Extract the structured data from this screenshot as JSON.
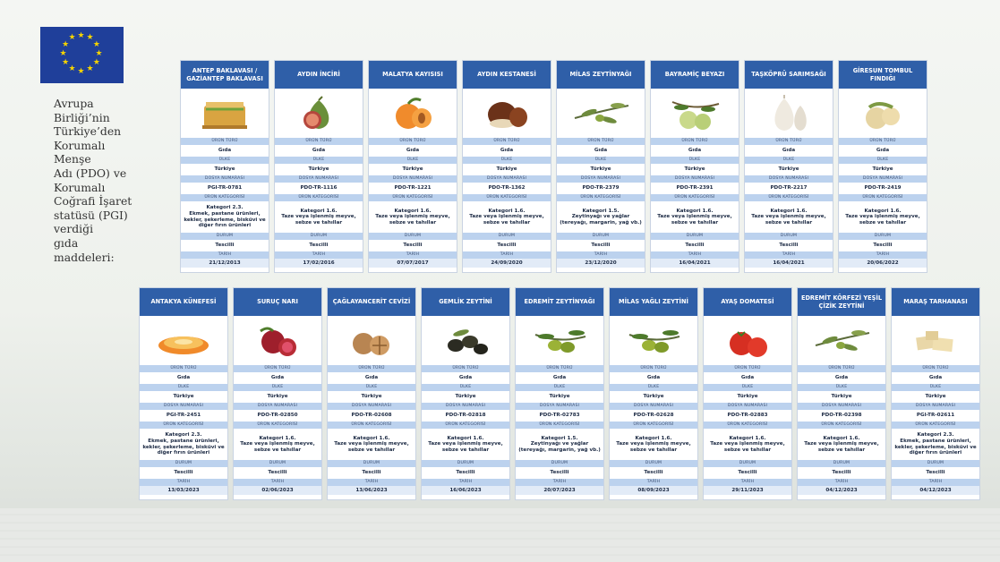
{
  "side_title": [
    "Avrupa",
    "Birliği’nin",
    "Türkiye’den",
    "Korumalı Menşe",
    "Adı (PDO) ve",
    "Korumalı",
    "Coğrafi İşaret",
    "statüsü (PGI)",
    "verdiği",
    "gıda maddeleri:"
  ],
  "labels": {
    "type": "ÜRÜN TÜRÜ",
    "country": "ÜLKE",
    "file": "DOSYA NUMARASI",
    "category": "ÜRÜN KATEGORİSİ",
    "status": "DURUM",
    "date": "TARİH"
  },
  "row1": [
    {
      "name": "ANTEP BAKLAVASI / GAZİANTEP BAKLAVASI",
      "type": "Gıda",
      "country": "Türkiye",
      "file": "PGI-TR-0781",
      "cat1": "Kategori 2.3.",
      "cat2": "Ekmek, pastane ürünleri, kekler, şekerleme, bisküvi ve diğer fırın ürünleri",
      "status": "Tescilli",
      "date": "21/12/2013",
      "icon": "baklava-icon"
    },
    {
      "name": "AYDIN İNCİRİ",
      "type": "Gıda",
      "country": "Türkiye",
      "file": "PDO-TR-1116",
      "cat1": "Kategori 1.6.",
      "cat2": "Taze veya işlenmiş meyve, sebze ve tahıllar",
      "status": "Tescilli",
      "date": "17/02/2016",
      "icon": "fig-icon"
    },
    {
      "name": "MALATYA KAYISISI",
      "type": "Gıda",
      "country": "Türkiye",
      "file": "PDO-TR-1221",
      "cat1": "Kategori 1.6.",
      "cat2": "Taze veya işlenmiş meyve, sebze ve tahıllar",
      "status": "Tescilli",
      "date": "07/07/2017",
      "icon": "apricot-icon"
    },
    {
      "name": "AYDIN KESTANESİ",
      "type": "Gıda",
      "country": "Türkiye",
      "file": "PDO-TR-1362",
      "cat1": "Kategori 1.6.",
      "cat2": "Taze veya işlenmiş meyve, sebze ve tahıllar",
      "status": "Tescilli",
      "date": "24/09/2020",
      "icon": "chestnut-icon"
    },
    {
      "name": "MİLAS ZEYTİNYAĞI",
      "type": "Gıda",
      "country": "Türkiye",
      "file": "PDO-TR-2379",
      "cat1": "Kategori 1.5.",
      "cat2": "Zeytinyağı ve yağlar (tereyağı, margarin, yağ vb.)",
      "status": "Tescilli",
      "date": "23/12/2020",
      "icon": "olive-branch-icon"
    },
    {
      "name": "BAYRAMİÇ BEYAZI",
      "type": "Gıda",
      "country": "Türkiye",
      "file": "PDO-TR-2391",
      "cat1": "Kategori 1.6.",
      "cat2": "Taze veya işlenmiş meyve, sebze ve tahıllar",
      "status": "Tescilli",
      "date": "16/04/2021",
      "icon": "nectarine-branch-icon"
    },
    {
      "name": "TAŞKÖPRÜ SARIMSAĞI",
      "type": "Gıda",
      "country": "Türkiye",
      "file": "PDO-TR-2217",
      "cat1": "Kategori 1.6.",
      "cat2": "Taze veya işlenmiş meyve, sebze ve tahıllar",
      "status": "Tescilli",
      "date": "16/04/2021",
      "icon": "garlic-icon"
    },
    {
      "name": "GİRESUN TOMBUL FINDIĞI",
      "type": "Gıda",
      "country": "Türkiye",
      "file": "PDO-TR-2419",
      "cat1": "Kategori 1.6.",
      "cat2": "Taze veya işlenmiş meyve, sebze ve tahıllar",
      "status": "Tescilli",
      "date": "20/06/2022",
      "icon": "hazelnut-icon"
    }
  ],
  "row2": [
    {
      "name": "ANTAKYA KÜNEFESİ",
      "type": "Gıda",
      "country": "Türkiye",
      "file": "PGI-TR-2451",
      "cat1": "Kategori 2.3.",
      "cat2": "Ekmek, pastane ürünleri, kekler, şekerleme, bisküvi ve diğer fırın ürünleri",
      "status": "Tescilli",
      "date": "13/03/2023",
      "icon": "kunefe-icon"
    },
    {
      "name": "SURUÇ NARI",
      "type": "Gıda",
      "country": "Türkiye",
      "file": "PDO-TR-02850",
      "cat1": "Kategori 1.6.",
      "cat2": "Taze veya işlenmiş meyve, sebze ve tahıllar",
      "status": "Tescilli",
      "date": "02/06/2023",
      "icon": "pomegranate-icon"
    },
    {
      "name": "ÇAĞLAYANCERİT CEVİZİ",
      "type": "Gıda",
      "country": "Türkiye",
      "file": "PDO-TR-02608",
      "cat1": "Kategori 1.6.",
      "cat2": "Taze veya işlenmiş meyve, sebze ve tahıllar",
      "status": "Tescilli",
      "date": "13/06/2023",
      "icon": "walnut-icon"
    },
    {
      "name": "GEMLİK ZEYTİNİ",
      "type": "Gıda",
      "country": "Türkiye",
      "file": "PDO-TR-02818",
      "cat1": "Kategori 1.6.",
      "cat2": "Taze veya işlenmiş meyve, sebze ve tahıllar",
      "status": "Tescilli",
      "date": "16/06/2023",
      "icon": "black-olive-icon"
    },
    {
      "name": "EDREMİT ZEYTİNYAĞI",
      "type": "Gıda",
      "country": "Türkiye",
      "file": "PDO-TR-02783",
      "cat1": "Kategori 1.5.",
      "cat2": "Zeytinyağı ve yağlar (tereyağı, margarin, yağ vb.)",
      "status": "Tescilli",
      "date": "20/07/2023",
      "icon": "green-olive-icon"
    },
    {
      "name": "MİLAS YAĞLI ZEYTİNİ",
      "type": "Gıda",
      "country": "Türkiye",
      "file": "PDO-TR-02628",
      "cat1": "Kategori 1.6.",
      "cat2": "Taze veya işlenmiş meyve, sebze ve tahıllar",
      "status": "Tescilli",
      "date": "08/09/2023",
      "icon": "green-olive-icon"
    },
    {
      "name": "AYAŞ DOMATESİ",
      "type": "Gıda",
      "country": "Türkiye",
      "file": "PDO-TR-02883",
      "cat1": "Kategori 1.6.",
      "cat2": "Taze veya işlenmiş meyve, sebze ve tahıllar",
      "status": "Tescilli",
      "date": "29/11/2023",
      "icon": "tomato-icon"
    },
    {
      "name": "EDREMİT KÖRFEZİ YEŞİL ÇİZİK ZEYTİNİ",
      "type": "Gıda",
      "country": "Türkiye",
      "file": "PDO-TR-02398",
      "cat1": "Kategori 1.6.",
      "cat2": "Taze veya işlenmiş meyve, sebze ve tahıllar",
      "status": "Tescilli",
      "date": "04/12/2023",
      "icon": "olive-branch-icon"
    },
    {
      "name": "MARAŞ TARHANASI",
      "type": "Gıda",
      "country": "Türkiye",
      "file": "PGI-TR-02611",
      "cat1": "Kategori 2.3.",
      "cat2": "Ekmek, pastane ürünleri, kekler, şekerleme, bisküvi ve diğer fırın ürünleri",
      "status": "Tescilli",
      "date": "04/12/2023",
      "icon": "tarhana-icon"
    }
  ],
  "colors": {
    "header": "#2f5fa8",
    "label_band": "#bcd2ee",
    "eu_blue": "#1f3f9a",
    "eu_star": "#f4d300"
  }
}
